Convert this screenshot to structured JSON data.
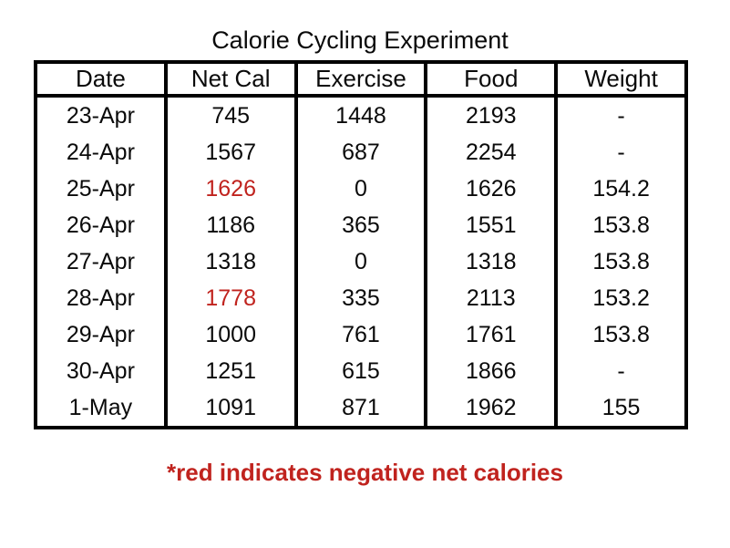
{
  "title": "Calorie Cycling Experiment",
  "footnote": "*red indicates negative net calories",
  "colors": {
    "text": "#0a0a0a",
    "border": "#000000",
    "background": "#ffffff",
    "negative_net_cal_red": "#c0231e",
    "footnote_red": "#c0231e"
  },
  "chart_data": {
    "type": "table",
    "title": "Calorie Cycling Experiment",
    "columns": [
      "Date",
      "Net Cal",
      "Exercise",
      "Food",
      "Weight"
    ],
    "rows": [
      [
        "23-Apr",
        "745",
        "1448",
        "2193",
        "-"
      ],
      [
        "24-Apr",
        "1567",
        "687",
        "2254",
        "-"
      ],
      [
        "25-Apr",
        "1626",
        "0",
        "1626",
        "154.2"
      ],
      [
        "26-Apr",
        "1186",
        "365",
        "1551",
        "153.8"
      ],
      [
        "27-Apr",
        "1318",
        "0",
        "1318",
        "153.8"
      ],
      [
        "28-Apr",
        "1778",
        "335",
        "2113",
        "153.2"
      ],
      [
        "29-Apr",
        "1000",
        "761",
        "1761",
        "153.8"
      ],
      [
        "30-Apr",
        "1251",
        "615",
        "1866",
        "-"
      ],
      [
        "1-May",
        "1091",
        "871",
        "1962",
        "155"
      ]
    ],
    "red_net_cal_row_indices": [
      2,
      5
    ],
    "annotations": [
      "*red indicates negative net calories"
    ],
    "layout": {
      "grid": "outer-border, column-dividers, header-underline only",
      "legend_position": "none",
      "cell_alignment": "center"
    }
  }
}
